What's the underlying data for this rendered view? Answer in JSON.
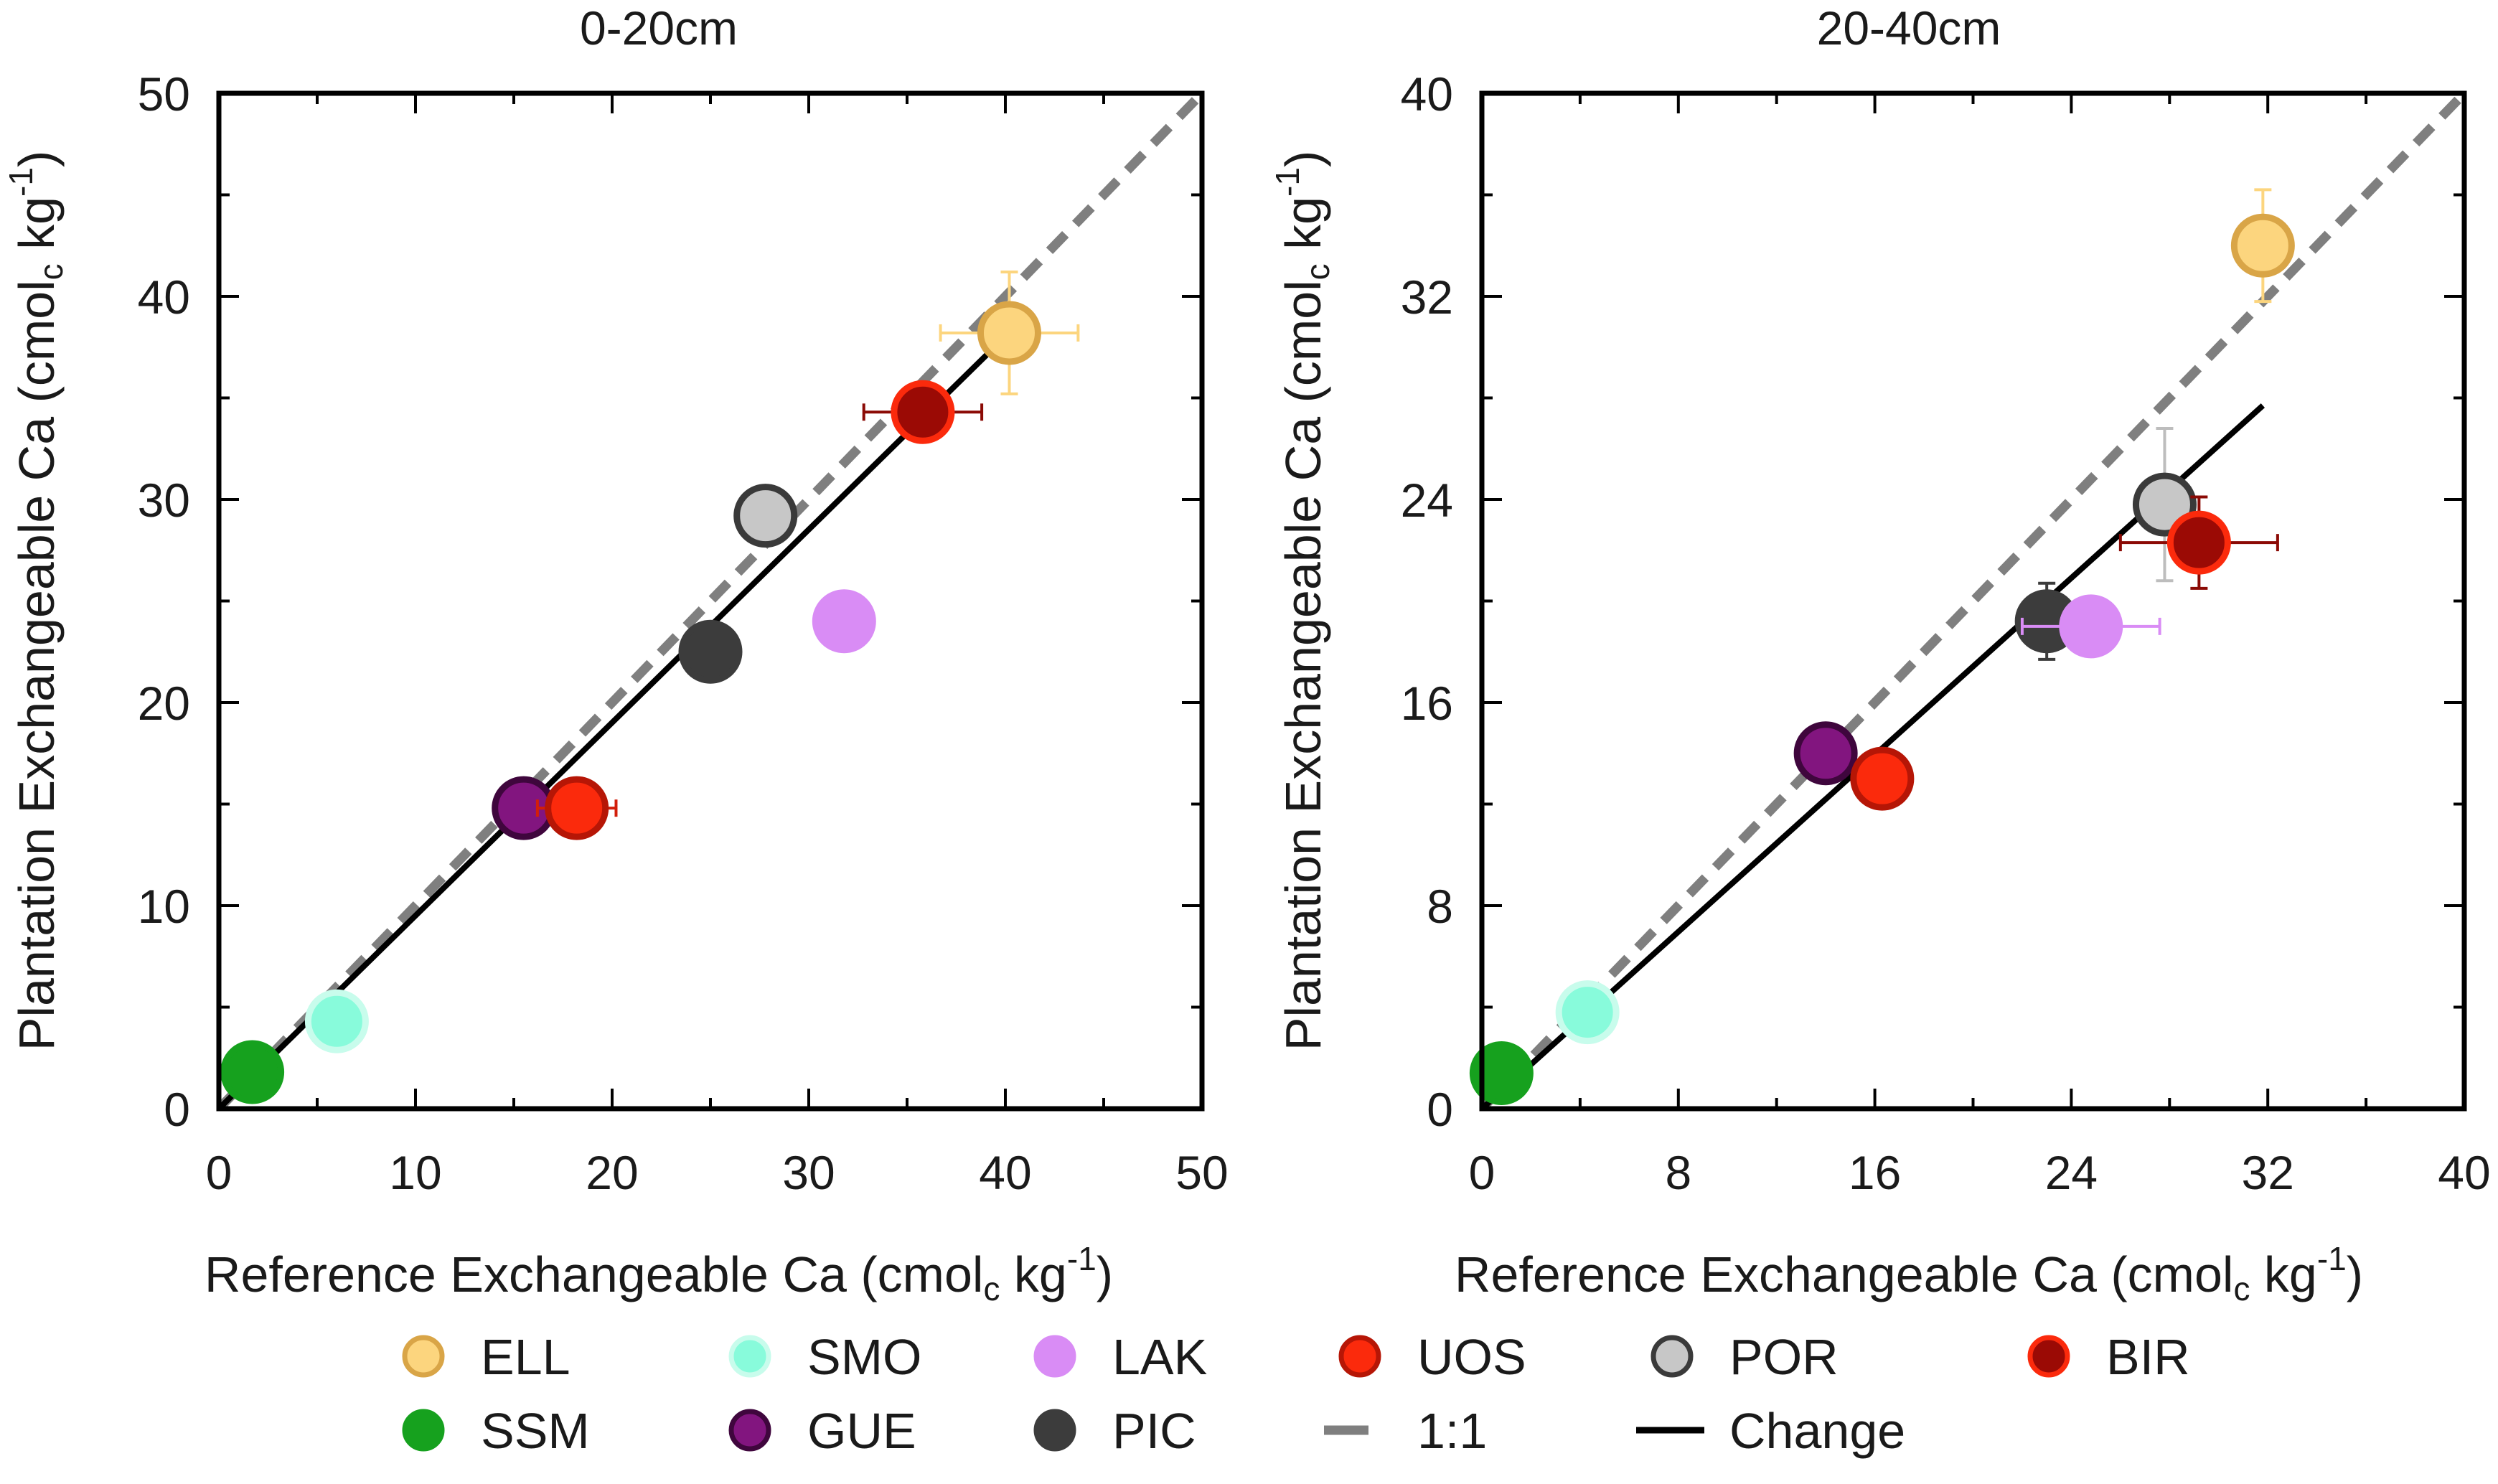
{
  "chart_data": [
    {
      "type": "scatter",
      "title": "0-20cm",
      "xlabel": "Reference Exchangeable Ca (cmol",
      "ylabel": "Plantation Exchangeable Ca (cmol",
      "unit_subscript": "c",
      "unit_tail": " kg",
      "unit_exponent": "-1",
      "xlim": [
        0,
        50
      ],
      "ylim": [
        0,
        50
      ],
      "xticks": [
        "0",
        "10",
        "20",
        "30",
        "40",
        "50"
      ],
      "yticks": [
        "0",
        "10",
        "20",
        "30",
        "40",
        "50"
      ],
      "one_to_one": [
        [
          0,
          0
        ],
        [
          50,
          50
        ]
      ],
      "change_line": [
        [
          0,
          0
        ],
        [
          40.5,
          38.5
        ]
      ],
      "points": [
        {
          "site": "ELL",
          "x": 40.2,
          "y": 38.2,
          "xerr": 3.5,
          "yerr": 3.0
        },
        {
          "site": "BIR",
          "x": 35.8,
          "y": 34.3,
          "xerr": 3.0,
          "yerr": 0.0
        },
        {
          "site": "POR",
          "x": 27.8,
          "y": 29.2,
          "xerr": 0.0,
          "yerr": 0.0
        },
        {
          "site": "LAK",
          "x": 31.8,
          "y": 24.0,
          "xerr": 0.0,
          "yerr": 0.0
        },
        {
          "site": "PIC",
          "x": 25.0,
          "y": 22.5,
          "xerr": 0.0,
          "yerr": 0.0
        },
        {
          "site": "GUE",
          "x": 15.5,
          "y": 14.8,
          "xerr": 0.0,
          "yerr": 0.0
        },
        {
          "site": "UOS",
          "x": 18.2,
          "y": 14.8,
          "xerr": 2.0,
          "yerr": 0.0
        },
        {
          "site": "SMO",
          "x": 6.0,
          "y": 4.3,
          "xerr": 0.0,
          "yerr": 0.0
        },
        {
          "site": "SSM",
          "x": 1.7,
          "y": 1.8,
          "xerr": 0.0,
          "yerr": 0.0
        }
      ]
    },
    {
      "type": "scatter",
      "title": "20-40cm",
      "xlabel": "Reference Exchangeable Ca (cmol",
      "ylabel": "Plantation Exchangeable Ca (cmol",
      "unit_subscript": "c",
      "unit_tail": " kg",
      "unit_exponent": "-1",
      "xlim": [
        0,
        40
      ],
      "ylim": [
        0,
        40
      ],
      "xticks": [
        "0",
        "8",
        "16",
        "24",
        "32",
        "40"
      ],
      "yticks": [
        "0",
        "8",
        "16",
        "24",
        "32",
        "40"
      ],
      "one_to_one": [
        [
          0,
          0
        ],
        [
          40,
          40
        ]
      ],
      "change_line": [
        [
          0,
          0
        ],
        [
          31.8,
          27.7
        ]
      ],
      "points": [
        {
          "site": "ELL",
          "x": 31.8,
          "y": 34.0,
          "xerr": 1.0,
          "yerr": 2.2
        },
        {
          "site": "POR",
          "x": 27.8,
          "y": 23.8,
          "xerr": 0.0,
          "yerr": 3.0
        },
        {
          "site": "BIR",
          "x": 29.2,
          "y": 22.3,
          "xerr": 3.2,
          "yerr": 1.8
        },
        {
          "site": "PIC",
          "x": 23.0,
          "y": 19.2,
          "xerr": 0.0,
          "yerr": 1.5
        },
        {
          "site": "LAK",
          "x": 24.8,
          "y": 19.0,
          "xerr": 2.8,
          "yerr": 0.0
        },
        {
          "site": "GUE",
          "x": 14.0,
          "y": 14.0,
          "xerr": 0.0,
          "yerr": 0.0
        },
        {
          "site": "UOS",
          "x": 16.3,
          "y": 13.0,
          "xerr": 0.0,
          "yerr": 0.0
        },
        {
          "site": "SMO",
          "x": 4.3,
          "y": 3.8,
          "xerr": 0.0,
          "yerr": 0.0
        },
        {
          "site": "SSM",
          "x": 0.8,
          "y": 1.4,
          "xerr": 0.0,
          "yerr": 0.0
        }
      ]
    }
  ],
  "legend": {
    "placement": "bottom",
    "items": [
      {
        "label": "ELL",
        "kind": "marker",
        "fill": "#FCD57E",
        "stroke": "#D9A547",
        "err": "#FCD57E"
      },
      {
        "label": "SMO",
        "kind": "marker",
        "fill": "#88FBDB",
        "stroke": "#C8FCEC",
        "err": "#88FBDB"
      },
      {
        "label": "LAK",
        "kind": "marker",
        "fill": "#D98CF5",
        "stroke": "#D98CF5",
        "err": "#D98CF5"
      },
      {
        "label": "UOS",
        "kind": "marker",
        "fill": "#FB2A0C",
        "stroke": "#B61606",
        "err": "#D21E0A"
      },
      {
        "label": "POR",
        "kind": "marker",
        "fill": "#C7C7C7",
        "stroke": "#3A3A3A",
        "err": "#BDBDBD"
      },
      {
        "label": "BIR",
        "kind": "marker",
        "fill": "#9B0A05",
        "stroke": "#FB2A0C",
        "err": "#8B0A05"
      },
      {
        "label": "SSM",
        "kind": "marker",
        "fill": "#16A11E",
        "stroke": "#16A11E",
        "err": "#16A11E"
      },
      {
        "label": "GUE",
        "kind": "marker",
        "fill": "#82157F",
        "stroke": "#3F063D",
        "err": "#82157F"
      },
      {
        "label": "PIC",
        "kind": "marker",
        "fill": "#3C3C3C",
        "stroke": "#3C3C3C",
        "err": "#3C3C3C"
      },
      {
        "label": "1:1",
        "kind": "dash",
        "stroke": "#7F7F7F"
      },
      {
        "label": "Change",
        "kind": "line",
        "stroke": "#000000"
      }
    ]
  }
}
